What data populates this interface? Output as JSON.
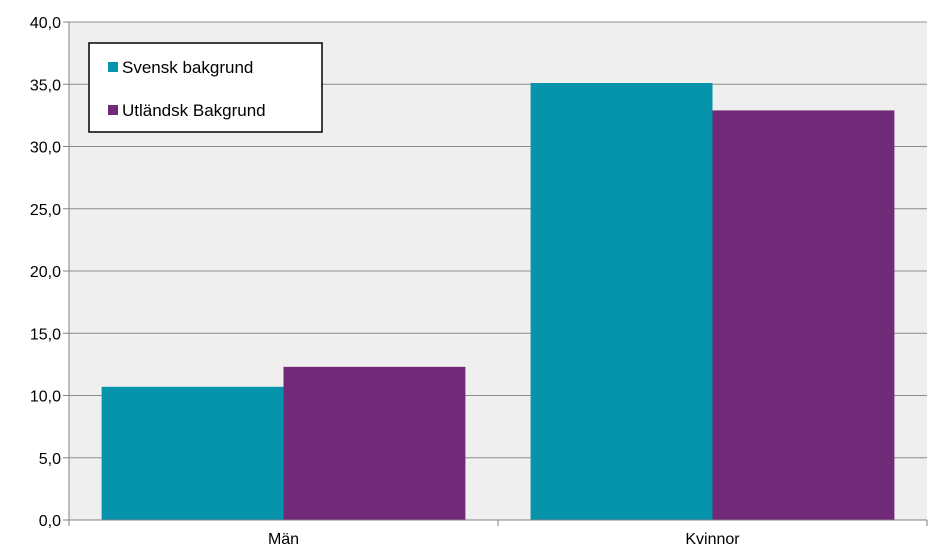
{
  "chart_data": {
    "type": "bar",
    "categories": [
      "Män",
      "Kvinnor"
    ],
    "series": [
      {
        "name": "Svensk bakgrund",
        "values": [
          10.7,
          35.1
        ],
        "color": "#0694ad"
      },
      {
        "name": "Utländsk Bakgrund",
        "values": [
          12.3,
          32.9
        ],
        "color": "#712a77"
      }
    ],
    "ylim": [
      0,
      40
    ],
    "yticks": [
      "0,0",
      "5,0",
      "10,0",
      "15,0",
      "20,0",
      "25,0",
      "30,0",
      "35,0",
      "40,0"
    ],
    "grid": true,
    "plot_background": "#efefef",
    "legend_position": "top-left"
  }
}
